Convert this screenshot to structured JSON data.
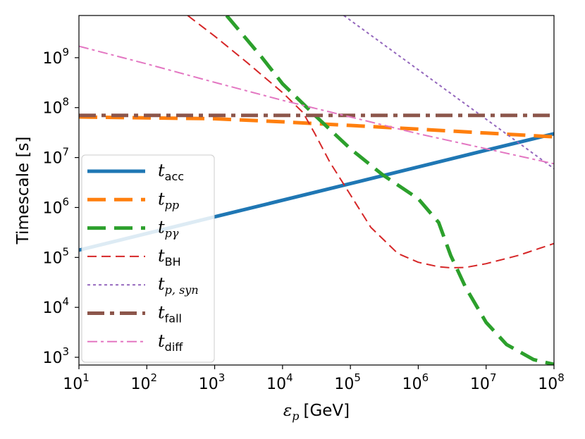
{
  "chart_data": {
    "type": "line",
    "title": "",
    "xlabel": {
      "symbol": "ε",
      "sub": "p",
      "unit": "[GeV]"
    },
    "ylabel": "Timescale [s]",
    "xscale": "log",
    "yscale": "log",
    "xlim": [
      10,
      100000000
    ],
    "ylim": [
      700,
      7000000000
    ],
    "x_ticks": [
      {
        "base": "10",
        "exp": "1"
      },
      {
        "base": "10",
        "exp": "2"
      },
      {
        "base": "10",
        "exp": "3"
      },
      {
        "base": "10",
        "exp": "4"
      },
      {
        "base": "10",
        "exp": "5"
      },
      {
        "base": "10",
        "exp": "6"
      },
      {
        "base": "10",
        "exp": "7"
      },
      {
        "base": "10",
        "exp": "8"
      }
    ],
    "y_ticks": [
      {
        "base": "10",
        "exp": "3"
      },
      {
        "base": "10",
        "exp": "4"
      },
      {
        "base": "10",
        "exp": "5"
      },
      {
        "base": "10",
        "exp": "6"
      },
      {
        "base": "10",
        "exp": "7"
      },
      {
        "base": "10",
        "exp": "8"
      },
      {
        "base": "10",
        "exp": "9"
      }
    ],
    "legend_position": "lower-left",
    "series": [
      {
        "main": "t",
        "sub": "acc",
        "sub_style": "roman",
        "color": "#1f77b4",
        "style": "solid",
        "width": 5,
        "x": [
          10,
          1000,
          100000,
          10000000,
          100000000
        ],
        "y": [
          140000,
          650000,
          3000000,
          14000000,
          30000000
        ]
      },
      {
        "main": "t",
        "sub": "pp",
        "sub_style": "italic",
        "color": "#ff7f0e",
        "style": "dashed",
        "width": 5,
        "x": [
          10,
          1000,
          10000,
          100000,
          1000000,
          10000000,
          100000000
        ],
        "y": [
          65000000,
          60000000,
          52000000,
          44000000,
          37000000,
          31000000,
          26000000
        ]
      },
      {
        "main": "t",
        "sub": "pγ",
        "sub_style": "italic",
        "color": "#2ca02c",
        "style": "dashed",
        "width": 5,
        "x": [
          1500,
          5000,
          10000,
          30000,
          100000,
          300000,
          1000000,
          2000000,
          3000000,
          5000000,
          10000000,
          20000000,
          50000000,
          100000000
        ],
        "y": [
          7000000000,
          1000000000,
          300000000,
          70000000,
          15000000,
          4500000,
          1500000,
          500000,
          110000,
          25000,
          5000,
          1800,
          900,
          720
        ]
      },
      {
        "main": "t",
        "sub": "BH",
        "sub_style": "roman",
        "color": "#d62728",
        "style": "dashed-thin",
        "width": 2,
        "x": [
          400,
          1000,
          3000,
          10000,
          20000,
          30000,
          50000,
          100000,
          200000,
          500000,
          1000000,
          2000000,
          3000000,
          5000000,
          10000000,
          30000000,
          100000000
        ],
        "y": [
          7000000000,
          2700000000,
          800000000,
          200000000,
          80000000,
          30000000,
          8000000,
          1800000,
          400000,
          120000,
          80000,
          65000,
          62000,
          63000,
          75000,
          110000,
          190000
        ]
      },
      {
        "main": "t",
        "sub": "p, syn",
        "sub_style": "italic",
        "color": "#9467bd",
        "style": "dotted",
        "width": 2,
        "x": [
          80000,
          100000000
        ],
        "y": [
          7000000000,
          6000000
        ]
      },
      {
        "main": "t",
        "sub": "fall",
        "sub_style": "roman",
        "color": "#8c564b",
        "style": "dashdot",
        "width": 5,
        "x": [
          10,
          100000000
        ],
        "y": [
          70000000,
          70000000
        ]
      },
      {
        "main": "t",
        "sub": "diff",
        "sub_style": "roman",
        "color": "#e377c2",
        "style": "dashdot-thin",
        "width": 2,
        "x": [
          10,
          100,
          1000,
          10000,
          100000,
          1000000,
          10000000,
          100000000
        ],
        "y": [
          1700000000,
          750000000,
          320000000,
          140000000,
          65000000,
          30000000,
          15000000,
          7500000
        ]
      }
    ]
  }
}
